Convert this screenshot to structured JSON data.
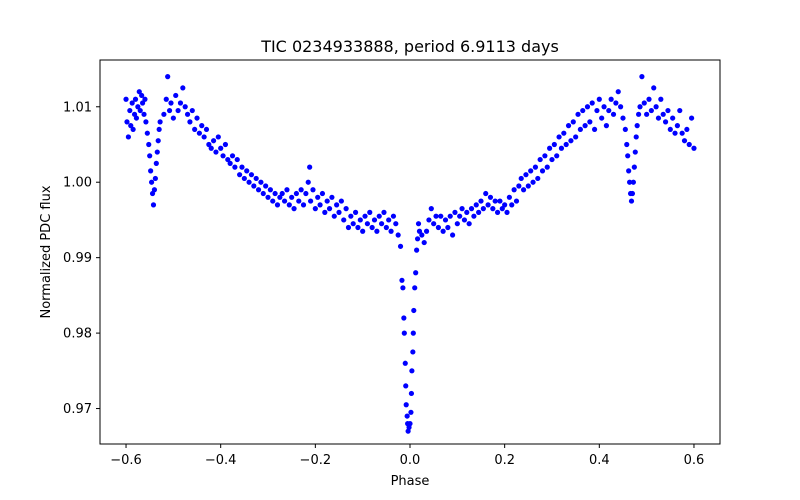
{
  "chart_data": {
    "type": "scatter",
    "title": "TIC 0234933888, period 6.9113 days",
    "xlabel": "Phase",
    "ylabel": "Normalized PDC flux",
    "xlim": [
      -0.655,
      0.655
    ],
    "ylim": [
      0.9653,
      1.0162
    ],
    "xticks": [
      -0.6,
      -0.4,
      -0.2,
      0.0,
      0.2,
      0.4,
      0.6
    ],
    "xtick_labels": [
      "−0.6",
      "−0.4",
      "−0.2",
      "0.0",
      "0.2",
      "0.4",
      "0.6"
    ],
    "yticks": [
      0.97,
      0.98,
      0.99,
      1.0,
      1.01
    ],
    "ytick_labels": [
      "0.97",
      "0.98",
      "0.99",
      "1.00",
      "1.01"
    ],
    "grid": false,
    "marker_color": "#0000ff",
    "series": [
      {
        "points": [
          [
            -0.6,
            1.011
          ],
          [
            -0.598,
            1.008
          ],
          [
            -0.595,
            1.006
          ],
          [
            -0.592,
            1.0095
          ],
          [
            -0.59,
            1.0075
          ],
          [
            -0.587,
            1.0105
          ],
          [
            -0.585,
            1.007
          ],
          [
            -0.582,
            1.009
          ],
          [
            -0.58,
            1.011
          ],
          [
            -0.578,
            1.0085
          ],
          [
            -0.575,
            1.01
          ],
          [
            -0.572,
            1.012
          ],
          [
            -0.57,
            1.0095
          ],
          [
            -0.567,
            1.0115
          ],
          [
            -0.565,
            1.0105
          ],
          [
            -0.562,
            1.009
          ],
          [
            -0.56,
            1.011
          ],
          [
            -0.558,
            1.008
          ],
          [
            -0.555,
            1.0065
          ],
          [
            -0.552,
            1.005
          ],
          [
            -0.55,
            1.0035
          ],
          [
            -0.548,
            1.0015
          ],
          [
            -0.546,
            1.0
          ],
          [
            -0.544,
            0.9985
          ],
          [
            -0.542,
            0.997
          ],
          [
            -0.54,
            0.999
          ],
          [
            -0.538,
            1.0005
          ],
          [
            -0.536,
            1.0025
          ],
          [
            -0.534,
            1.004
          ],
          [
            -0.532,
            1.0055
          ],
          [
            -0.53,
            1.007
          ],
          [
            -0.528,
            1.008
          ],
          [
            -0.52,
            1.009
          ],
          [
            -0.515,
            1.011
          ],
          [
            -0.512,
            1.014
          ],
          [
            -0.508,
            1.0095
          ],
          [
            -0.505,
            1.0105
          ],
          [
            -0.5,
            1.0085
          ],
          [
            -0.495,
            1.0115
          ],
          [
            -0.49,
            1.0095
          ],
          [
            -0.485,
            1.0105
          ],
          [
            -0.48,
            1.0125
          ],
          [
            -0.475,
            1.01
          ],
          [
            -0.47,
            1.009
          ],
          [
            -0.465,
            1.008
          ],
          [
            -0.46,
            1.0095
          ],
          [
            -0.455,
            1.007
          ],
          [
            -0.45,
            1.0085
          ],
          [
            -0.445,
            1.0065
          ],
          [
            -0.44,
            1.0075
          ],
          [
            -0.435,
            1.006
          ],
          [
            -0.43,
            1.007
          ],
          [
            -0.425,
            1.005
          ],
          [
            -0.42,
            1.0045
          ],
          [
            -0.415,
            1.0055
          ],
          [
            -0.41,
            1.004
          ],
          [
            -0.405,
            1.006
          ],
          [
            -0.4,
            1.0045
          ],
          [
            -0.395,
            1.0035
          ],
          [
            -0.39,
            1.005
          ],
          [
            -0.385,
            1.003
          ],
          [
            -0.38,
            1.0025
          ],
          [
            -0.375,
            1.0035
          ],
          [
            -0.37,
            1.002
          ],
          [
            -0.365,
            1.003
          ],
          [
            -0.36,
            1.001
          ],
          [
            -0.355,
            1.002
          ],
          [
            -0.35,
            1.0005
          ],
          [
            -0.345,
            1.0015
          ],
          [
            -0.34,
            1.0
          ],
          [
            -0.335,
            1.001
          ],
          [
            -0.33,
            0.9995
          ],
          [
            -0.325,
            1.0005
          ],
          [
            -0.32,
            0.999
          ],
          [
            -0.315,
            1.0
          ],
          [
            -0.31,
            0.9985
          ],
          [
            -0.305,
            0.9995
          ],
          [
            -0.3,
            0.998
          ],
          [
            -0.295,
            0.999
          ],
          [
            -0.29,
            0.9975
          ],
          [
            -0.285,
            0.9985
          ],
          [
            -0.28,
            0.997
          ],
          [
            -0.275,
            0.998
          ],
          [
            -0.27,
            0.9985
          ],
          [
            -0.265,
            0.9975
          ],
          [
            -0.26,
            0.999
          ],
          [
            -0.255,
            0.997
          ],
          [
            -0.25,
            0.998
          ],
          [
            -0.245,
            0.9965
          ],
          [
            -0.24,
            0.9985
          ],
          [
            -0.235,
            0.9975
          ],
          [
            -0.23,
            0.999
          ],
          [
            -0.225,
            0.997
          ],
          [
            -0.22,
            0.9985
          ],
          [
            -0.215,
            1.0
          ],
          [
            -0.212,
            1.002
          ],
          [
            -0.21,
            0.9975
          ],
          [
            -0.205,
            0.999
          ],
          [
            -0.2,
            0.9965
          ],
          [
            -0.195,
            0.998
          ],
          [
            -0.19,
            0.997
          ],
          [
            -0.185,
            0.9985
          ],
          [
            -0.18,
            0.996
          ],
          [
            -0.175,
            0.9975
          ],
          [
            -0.17,
            0.9965
          ],
          [
            -0.165,
            0.998
          ],
          [
            -0.16,
            0.9955
          ],
          [
            -0.155,
            0.997
          ],
          [
            -0.15,
            0.996
          ],
          [
            -0.145,
            0.9975
          ],
          [
            -0.14,
            0.995
          ],
          [
            -0.135,
            0.9965
          ],
          [
            -0.13,
            0.994
          ],
          [
            -0.125,
            0.9955
          ],
          [
            -0.12,
            0.9945
          ],
          [
            -0.115,
            0.996
          ],
          [
            -0.11,
            0.994
          ],
          [
            -0.105,
            0.995
          ],
          [
            -0.1,
            0.9935
          ],
          [
            -0.095,
            0.9955
          ],
          [
            -0.09,
            0.9945
          ],
          [
            -0.085,
            0.996
          ],
          [
            -0.08,
            0.994
          ],
          [
            -0.075,
            0.995
          ],
          [
            -0.07,
            0.9935
          ],
          [
            -0.065,
            0.9955
          ],
          [
            -0.06,
            0.9945
          ],
          [
            -0.055,
            0.996
          ],
          [
            -0.05,
            0.994
          ],
          [
            -0.045,
            0.995
          ],
          [
            -0.04,
            0.9935
          ],
          [
            -0.035,
            0.9955
          ],
          [
            -0.03,
            0.9945
          ],
          [
            -0.025,
            0.993
          ],
          [
            -0.02,
            0.9915
          ],
          [
            -0.017,
            0.987
          ],
          [
            -0.015,
            0.986
          ],
          [
            -0.013,
            0.982
          ],
          [
            -0.012,
            0.98
          ],
          [
            -0.01,
            0.976
          ],
          [
            -0.009,
            0.973
          ],
          [
            -0.008,
            0.9705
          ],
          [
            -0.006,
            0.969
          ],
          [
            -0.005,
            0.968
          ],
          [
            -0.004,
            0.967
          ],
          [
            -0.002,
            0.9675
          ],
          [
            0.0,
            0.968
          ],
          [
            0.002,
            0.9695
          ],
          [
            0.003,
            0.972
          ],
          [
            0.004,
            0.975
          ],
          [
            0.006,
            0.9775
          ],
          [
            0.007,
            0.98
          ],
          [
            0.008,
            0.983
          ],
          [
            0.01,
            0.986
          ],
          [
            0.012,
            0.988
          ],
          [
            0.014,
            0.991
          ],
          [
            0.016,
            0.9925
          ],
          [
            0.018,
            0.9945
          ],
          [
            0.02,
            0.9935
          ],
          [
            0.025,
            0.993
          ],
          [
            0.03,
            0.992
          ],
          [
            0.035,
            0.9935
          ],
          [
            0.04,
            0.995
          ],
          [
            0.045,
            0.9965
          ],
          [
            0.05,
            0.9945
          ],
          [
            0.055,
            0.9955
          ],
          [
            0.06,
            0.994
          ],
          [
            0.065,
            0.9955
          ],
          [
            0.07,
            0.9935
          ],
          [
            0.075,
            0.995
          ],
          [
            0.08,
            0.994
          ],
          [
            0.085,
            0.9955
          ],
          [
            0.09,
            0.993
          ],
          [
            0.095,
            0.996
          ],
          [
            0.1,
            0.9945
          ],
          [
            0.105,
            0.9955
          ],
          [
            0.11,
            0.9965
          ],
          [
            0.115,
            0.995
          ],
          [
            0.12,
            0.996
          ],
          [
            0.125,
            0.9945
          ],
          [
            0.13,
            0.9965
          ],
          [
            0.135,
            0.9955
          ],
          [
            0.14,
            0.997
          ],
          [
            0.145,
            0.996
          ],
          [
            0.15,
            0.9975
          ],
          [
            0.155,
            0.9965
          ],
          [
            0.16,
            0.9985
          ],
          [
            0.165,
            0.997
          ],
          [
            0.17,
            0.998
          ],
          [
            0.175,
            0.9965
          ],
          [
            0.18,
            0.9975
          ],
          [
            0.185,
            0.996
          ],
          [
            0.19,
            0.9975
          ],
          [
            0.195,
            0.9965
          ],
          [
            0.2,
            0.997
          ],
          [
            0.205,
            0.996
          ],
          [
            0.21,
            0.998
          ],
          [
            0.215,
            0.997
          ],
          [
            0.22,
            0.999
          ],
          [
            0.225,
            0.9975
          ],
          [
            0.23,
            0.9995
          ],
          [
            0.235,
            1.0005
          ],
          [
            0.24,
            0.999
          ],
          [
            0.245,
            1.001
          ],
          [
            0.25,
            0.9995
          ],
          [
            0.255,
            1.0015
          ],
          [
            0.26,
            1.0
          ],
          [
            0.265,
            1.002
          ],
          [
            0.27,
            1.0005
          ],
          [
            0.275,
            1.003
          ],
          [
            0.28,
            1.0015
          ],
          [
            0.285,
            1.0035
          ],
          [
            0.29,
            1.002
          ],
          [
            0.295,
            1.0045
          ],
          [
            0.3,
            1.003
          ],
          [
            0.305,
            1.005
          ],
          [
            0.31,
            1.0035
          ],
          [
            0.315,
            1.006
          ],
          [
            0.32,
            1.0045
          ],
          [
            0.325,
            1.0065
          ],
          [
            0.33,
            1.005
          ],
          [
            0.335,
            1.0075
          ],
          [
            0.34,
            1.0055
          ],
          [
            0.345,
            1.008
          ],
          [
            0.35,
            1.006
          ],
          [
            0.355,
            1.009
          ],
          [
            0.36,
            1.007
          ],
          [
            0.365,
            1.0095
          ],
          [
            0.37,
            1.0075
          ],
          [
            0.375,
            1.01
          ],
          [
            0.38,
            1.008
          ],
          [
            0.385,
            1.0105
          ],
          [
            0.39,
            1.007
          ],
          [
            0.395,
            1.0095
          ],
          [
            0.4,
            1.011
          ],
          [
            0.405,
            1.0085
          ],
          [
            0.41,
            1.01
          ],
          [
            0.415,
            1.0075
          ],
          [
            0.42,
            1.0095
          ],
          [
            0.425,
            1.011
          ],
          [
            0.43,
            1.009
          ],
          [
            0.435,
            1.0105
          ],
          [
            0.44,
            1.012
          ],
          [
            0.445,
            1.01
          ],
          [
            0.45,
            1.0085
          ],
          [
            0.455,
            1.007
          ],
          [
            0.458,
            1.005
          ],
          [
            0.46,
            1.0035
          ],
          [
            0.462,
            1.0015
          ],
          [
            0.464,
            1.0
          ],
          [
            0.466,
            0.9985
          ],
          [
            0.468,
            0.9975
          ],
          [
            0.47,
            0.9985
          ],
          [
            0.472,
            1.0
          ],
          [
            0.474,
            1.002
          ],
          [
            0.476,
            1.004
          ],
          [
            0.478,
            1.006
          ],
          [
            0.48,
            1.0075
          ],
          [
            0.483,
            1.009
          ],
          [
            0.486,
            1.01
          ],
          [
            0.49,
            1.014
          ],
          [
            0.495,
            1.0105
          ],
          [
            0.5,
            1.009
          ],
          [
            0.505,
            1.011
          ],
          [
            0.51,
            1.0095
          ],
          [
            0.515,
            1.0125
          ],
          [
            0.52,
            1.01
          ],
          [
            0.525,
            1.0085
          ],
          [
            0.53,
            1.011
          ],
          [
            0.535,
            1.009
          ],
          [
            0.54,
            1.008
          ],
          [
            0.545,
            1.0095
          ],
          [
            0.55,
            1.007
          ],
          [
            0.555,
            1.0085
          ],
          [
            0.56,
            1.0065
          ],
          [
            0.565,
            1.0075
          ],
          [
            0.57,
            1.0095
          ],
          [
            0.575,
            1.0065
          ],
          [
            0.58,
            1.0055
          ],
          [
            0.585,
            1.007
          ],
          [
            0.59,
            1.005
          ],
          [
            0.595,
            1.0085
          ],
          [
            0.6,
            1.0045
          ]
        ]
      }
    ]
  }
}
